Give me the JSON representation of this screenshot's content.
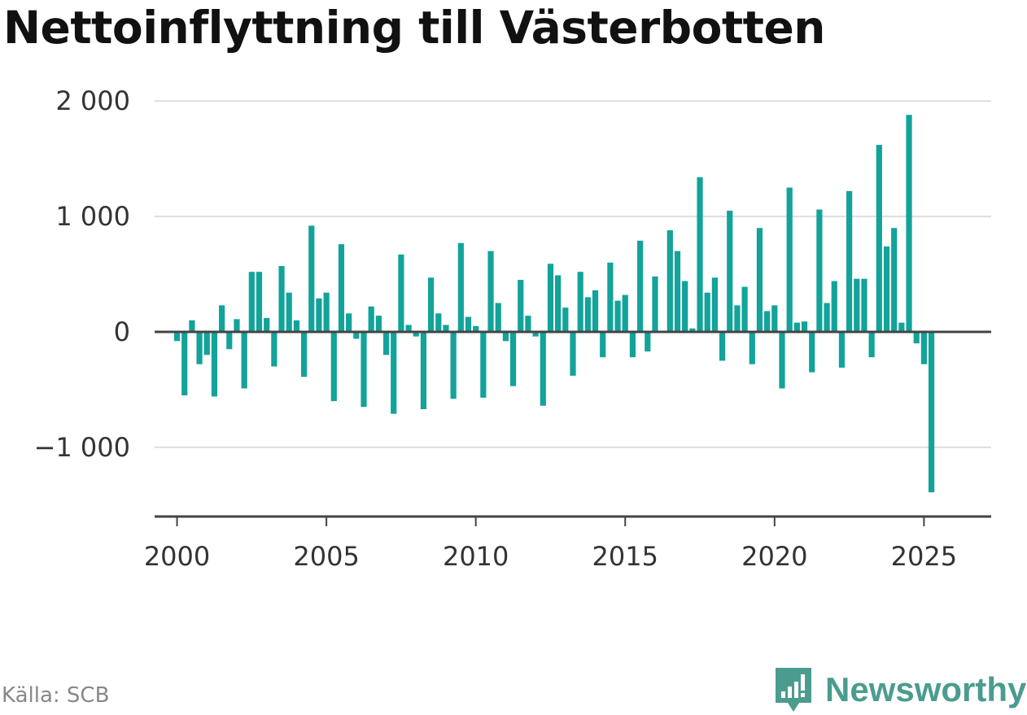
{
  "title": "Nettoinflyttning till Västerbotten",
  "source": "Källa: SCB",
  "brand": {
    "name": "Newsworthy",
    "color": "#4b9c8f",
    "icon": "newsworthy-logo-icon"
  },
  "colors": {
    "bar": "#12a39a",
    "grid": "#dddddd",
    "zero_line": "#444444",
    "axis": "#444444"
  },
  "chart_data": {
    "type": "bar",
    "title": "Nettoinflyttning till Västerbotten",
    "xlabel": "",
    "ylabel": "",
    "ylim": [
      -1600,
      2100
    ],
    "xlim": [
      1999.25,
      2027.25
    ],
    "yticks": [
      -1000,
      0,
      1000,
      2000
    ],
    "ytick_labels": [
      "−1 000",
      "0",
      "1 000",
      "2 000"
    ],
    "xticks": [
      2000,
      2005,
      2010,
      2015,
      2020,
      2025
    ],
    "xtick_labels": [
      "2000",
      "2005",
      "2010",
      "2015",
      "2020",
      "2025"
    ],
    "grid": true,
    "x_start": 2000,
    "x_step": 0.25,
    "values": [
      -80,
      -550,
      100,
      -280,
      -200,
      -560,
      230,
      -150,
      110,
      -490,
      520,
      520,
      120,
      -300,
      570,
      340,
      100,
      -390,
      920,
      290,
      340,
      -600,
      760,
      160,
      -60,
      -650,
      220,
      140,
      -200,
      -710,
      670,
      60,
      -40,
      -670,
      470,
      160,
      60,
      -580,
      770,
      130,
      50,
      -570,
      700,
      250,
      -80,
      -470,
      450,
      140,
      -40,
      -640,
      590,
      490,
      210,
      -380,
      520,
      300,
      360,
      -220,
      600,
      270,
      320,
      -220,
      790,
      -170,
      480,
      0,
      880,
      700,
      440,
      30,
      1340,
      340,
      470,
      -250,
      1050,
      230,
      390,
      -280,
      900,
      180,
      230,
      -490,
      1250,
      80,
      90,
      -350,
      1060,
      250,
      440,
      -310,
      1220,
      460,
      460,
      -220,
      1620,
      740,
      900,
      80,
      1880,
      -100,
      -280,
      -1390
    ]
  }
}
